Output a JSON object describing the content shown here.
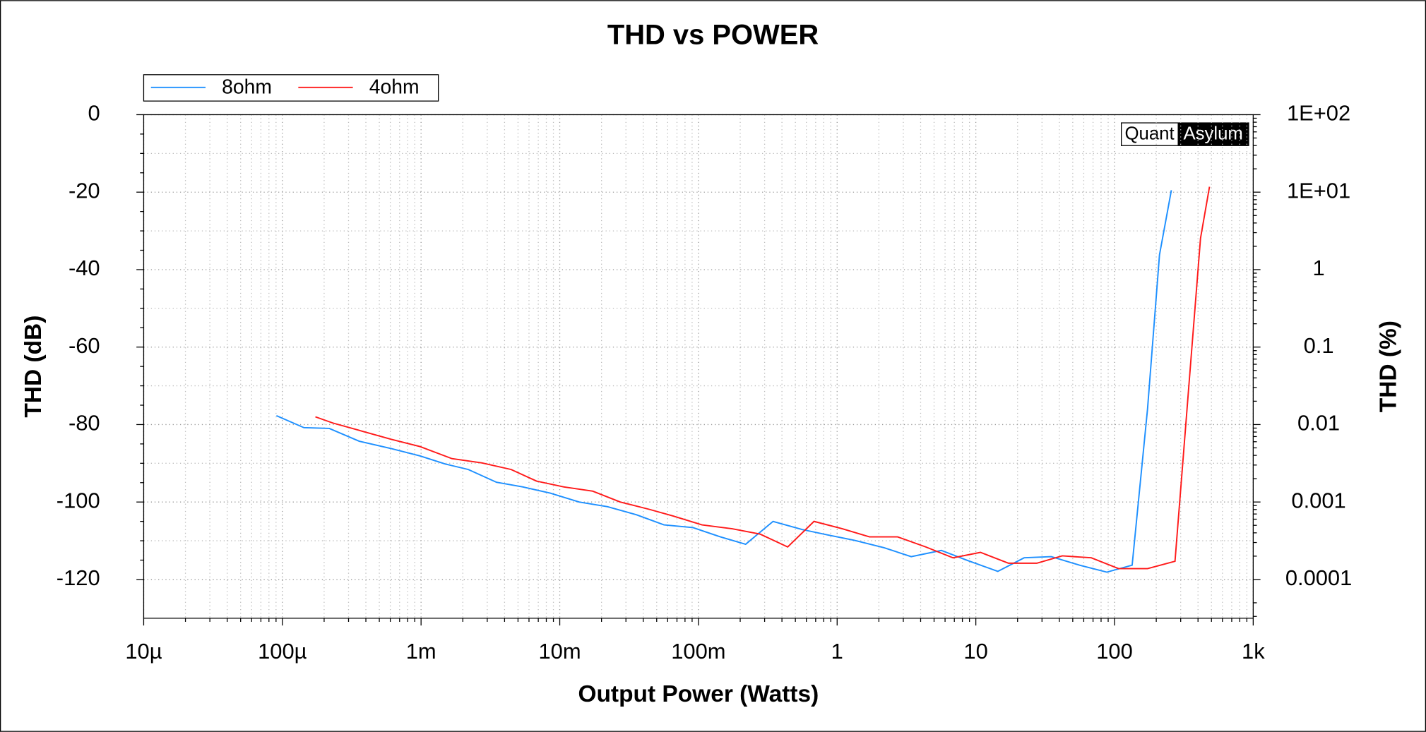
{
  "chart_data": {
    "type": "line",
    "title": "THD vs POWER",
    "x_label": "Output Power (Watts)",
    "y_label": "THD (dB)",
    "y2_label": "THD (%)",
    "brand": [
      "Quant",
      "Asylum"
    ],
    "x_log": true,
    "y2_log": true,
    "grid": true,
    "legend": "top-left",
    "xlim": [
      1e-05,
      1000
    ],
    "xticks": [
      {
        "value": 1e-05,
        "label": "10µ"
      },
      {
        "value": 0.0001,
        "label": "100µ"
      },
      {
        "value": 0.001,
        "label": "1m"
      },
      {
        "value": 0.01,
        "label": "10m"
      },
      {
        "value": 0.1,
        "label": "100m"
      },
      1,
      10,
      100,
      {
        "value": 1000,
        "label": "1k"
      }
    ],
    "ylim": [
      -130,
      0
    ],
    "yticks": [
      -120,
      -100,
      -80,
      -60,
      -40,
      -20,
      0
    ],
    "y2lim": [
      3.16e-05,
      100
    ],
    "y2ticks": [
      0.0001,
      0.001,
      0.01,
      0.1,
      1,
      {
        "value": 10,
        "label": "1E+01"
      },
      {
        "value": 100,
        "label": "1E+02"
      }
    ],
    "series": [
      {
        "name": "8ohm",
        "color": "#1e90ff",
        "x": [
          9.06e-05,
          0.000143,
          0.000218,
          0.000358,
          0.000608,
          0.000985,
          0.0015,
          0.00219,
          0.0035,
          0.00542,
          0.00853,
          0.0138,
          0.0221,
          0.0358,
          0.0564,
          0.0914,
          0.144,
          0.219,
          0.345,
          0.56,
          0.854,
          1.34,
          2.18,
          3.42,
          5.64,
          8.73,
          14.4,
          22.3,
          35,
          56,
          88,
          134,
          173,
          211,
          257
        ],
        "values": [
          -77.7,
          -80.8,
          -81.0,
          -84.3,
          -86.2,
          -88.1,
          -90.2,
          -91.6,
          -94.9,
          -96.1,
          -97.7,
          -100,
          -101.2,
          -103.3,
          -105.9,
          -106.6,
          -109,
          -110.9,
          -105,
          -107.1,
          -108.5,
          -109.9,
          -111.8,
          -114.1,
          -112.5,
          -115.1,
          -117.9,
          -114.4,
          -114.1,
          -116.3,
          -118.1,
          -116.3,
          -76,
          -36.2,
          -19.5
        ]
      },
      {
        "name": "4ohm",
        "color": "#ff1a1a",
        "x": [
          0.000173,
          0.000231,
          0.000375,
          0.000608,
          0.000985,
          0.00167,
          0.00275,
          0.00446,
          0.0068,
          0.0107,
          0.0173,
          0.0273,
          0.0443,
          0.0655,
          0.106,
          0.175,
          0.279,
          0.44,
          0.681,
          1.09,
          1.71,
          2.73,
          4.36,
          6.85,
          10.8,
          17.2,
          27.5,
          42,
          68,
          107,
          173,
          273,
          417,
          484
        ],
        "values": [
          -78,
          -79.6,
          -81.7,
          -83.8,
          -85.7,
          -88.8,
          -89.9,
          -91.6,
          -94.6,
          -96.1,
          -97.2,
          -100,
          -101.9,
          -103.6,
          -105.9,
          -106.9,
          -108.3,
          -111.6,
          -105,
          -106.9,
          -109,
          -109,
          -111.6,
          -114.4,
          -113,
          -115.8,
          -115.8,
          -113.9,
          -114.4,
          -117.2,
          -117.2,
          -115.3,
          -31.9,
          -18.6
        ]
      }
    ]
  }
}
